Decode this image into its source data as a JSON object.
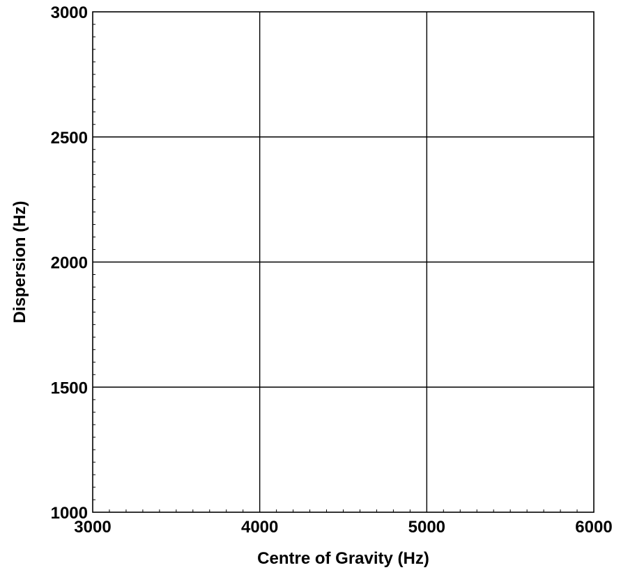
{
  "chart_data": {
    "type": "scatter",
    "title": "",
    "xlabel": "Centre of Gravity (Hz)",
    "ylabel": "Dispersion (Hz)",
    "xlim": [
      3000,
      6000
    ],
    "ylim": [
      1000,
      3000
    ],
    "x_ticks": [
      3000,
      4000,
      5000,
      6000
    ],
    "y_ticks": [
      1000,
      1500,
      2000,
      2500,
      3000
    ],
    "x_tick_labels": [
      "3000",
      "4000",
      "5000",
      "6000"
    ],
    "y_tick_labels": [
      "1000",
      "1500",
      "2000",
      "2500",
      "3000"
    ],
    "x_minor_step": 100,
    "y_minor_step": 50,
    "grid": true,
    "series": []
  }
}
